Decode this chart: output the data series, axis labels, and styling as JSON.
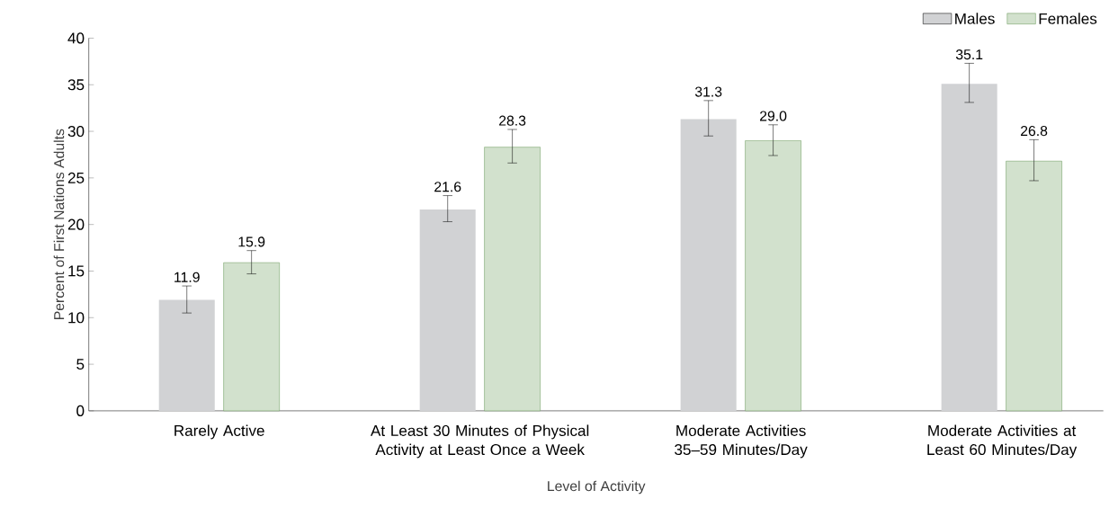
{
  "chart_data": {
    "type": "bar",
    "xlabel": "Level of Activity",
    "ylabel": "Percent of First Nations Adults",
    "categories": [
      "Rarely Active",
      "At Least 30 Minutes of Physical Activity at Least Once a Week",
      "Moderate Activities 35–59 Minutes/Day",
      "Moderate Activities at Least 60 Minutes/Day"
    ],
    "series": [
      {
        "name": "Males",
        "color": "#d1d2d4",
        "values": [
          11.9,
          21.6,
          31.3,
          35.1
        ],
        "errors": [
          [
            10.5,
            13.4
          ],
          [
            20.3,
            23.1
          ],
          [
            29.5,
            33.3
          ],
          [
            33.1,
            37.3
          ]
        ],
        "value_labels": [
          "11.9",
          "21.6",
          "31.3",
          "35.1"
        ]
      },
      {
        "name": "Females",
        "color": "#6a9a5a",
        "values": [
          15.9,
          28.3,
          29.0,
          26.8
        ],
        "errors": [
          [
            14.7,
            17.2
          ],
          [
            26.6,
            30.2
          ],
          [
            27.4,
            30.7
          ],
          [
            24.7,
            29.1
          ]
        ],
        "value_labels": [
          "15.9",
          "28.3",
          "29.0",
          "26.8"
        ]
      }
    ],
    "ylim": [
      0,
      40
    ],
    "yticks": [
      0,
      5,
      10,
      15,
      20,
      25,
      30,
      35,
      40
    ],
    "legend": "top right"
  }
}
